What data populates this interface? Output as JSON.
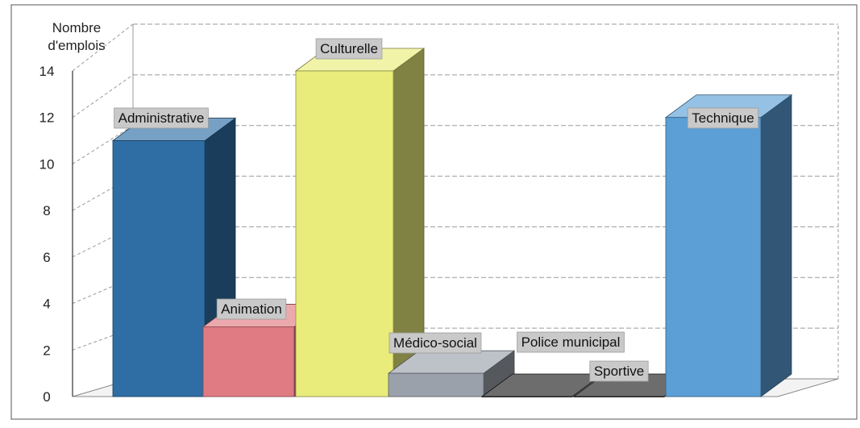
{
  "chart_data": {
    "type": "bar",
    "ylabel": "Nombre\nd'emplois",
    "ylim": [
      0,
      14
    ],
    "yticks": [
      0,
      2,
      4,
      6,
      8,
      10,
      12,
      14
    ],
    "grid": true,
    "categories": [
      "Administrative",
      "Animation",
      "Culturelle",
      "Médico-social",
      "Police municipal",
      "Sportive",
      "Technique"
    ],
    "values": [
      11,
      3,
      14,
      1,
      0,
      0,
      12
    ],
    "colors": [
      "#2e6ea4",
      "#e07b83",
      "#e9ec7a",
      "#9aa1ab",
      "#1f1f1f",
      "#1f1f1f",
      "#5b9fd6"
    ]
  }
}
